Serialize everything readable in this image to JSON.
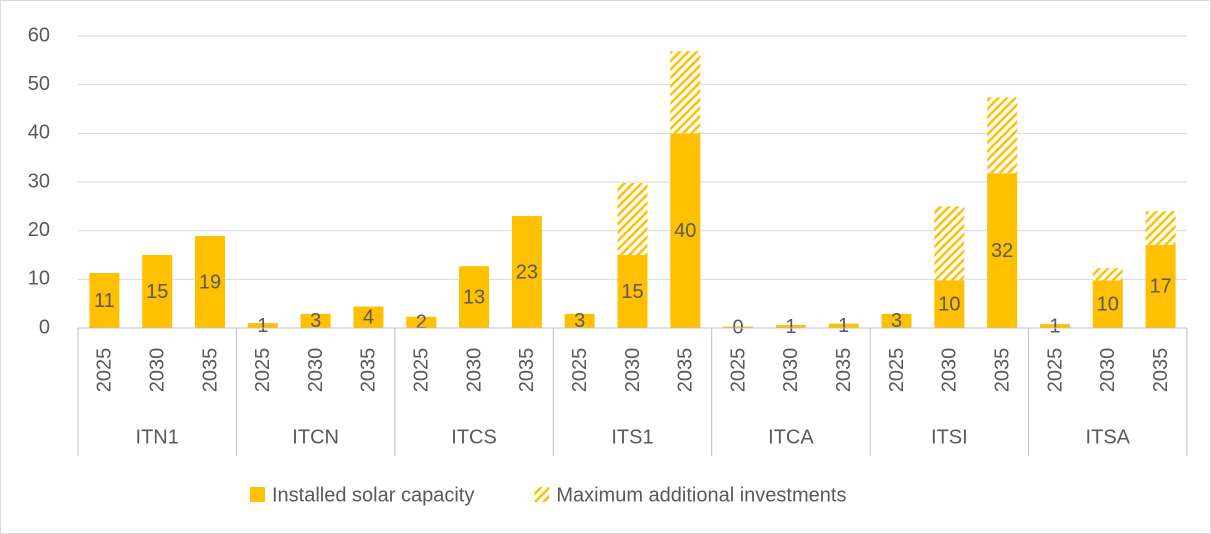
{
  "chart_data": {
    "type": "bar",
    "stacked": true,
    "groups": [
      "ITN1",
      "ITCN",
      "ITCS",
      "ITS1",
      "ITCA",
      "ITSI",
      "ITSA"
    ],
    "categories": [
      "2025",
      "2030",
      "2035",
      "2025",
      "2030",
      "2035",
      "2025",
      "2030",
      "2035",
      "2025",
      "2030",
      "2035",
      "2025",
      "2030",
      "2035",
      "2025",
      "2030",
      "2035",
      "2025",
      "2030",
      "2035"
    ],
    "series": [
      {
        "name": "Installed solar capacity",
        "color": "#ffc000",
        "values": [
          11.3,
          15,
          18.9,
          1.0,
          2.9,
          4.4,
          2.3,
          12.7,
          23,
          2.9,
          15,
          40,
          0.3,
          0.6,
          0.9,
          2.9,
          9.8,
          31.8,
          0.8,
          9.8,
          17.1
        ],
        "value_labels": [
          "11",
          "15",
          "19",
          "1",
          "3",
          "4",
          "2",
          "13",
          "23",
          "3",
          "15",
          "40",
          "0",
          "1",
          "1",
          "3",
          "10",
          "32",
          "1",
          "10",
          "17"
        ]
      },
      {
        "name": "Maximum additional investments",
        "color": "#ffc000",
        "pattern": "hatch",
        "values": [
          0,
          0,
          0,
          0,
          0,
          0,
          0,
          0,
          0,
          0,
          14.8,
          16.9,
          0,
          0,
          0,
          0,
          15.2,
          15.6,
          0,
          2.5,
          6.9
        ]
      }
    ],
    "ylim": [
      0,
      60
    ],
    "yticks": [
      0,
      10,
      20,
      30,
      40,
      50,
      60
    ],
    "grid": true,
    "legend": "bottom"
  }
}
